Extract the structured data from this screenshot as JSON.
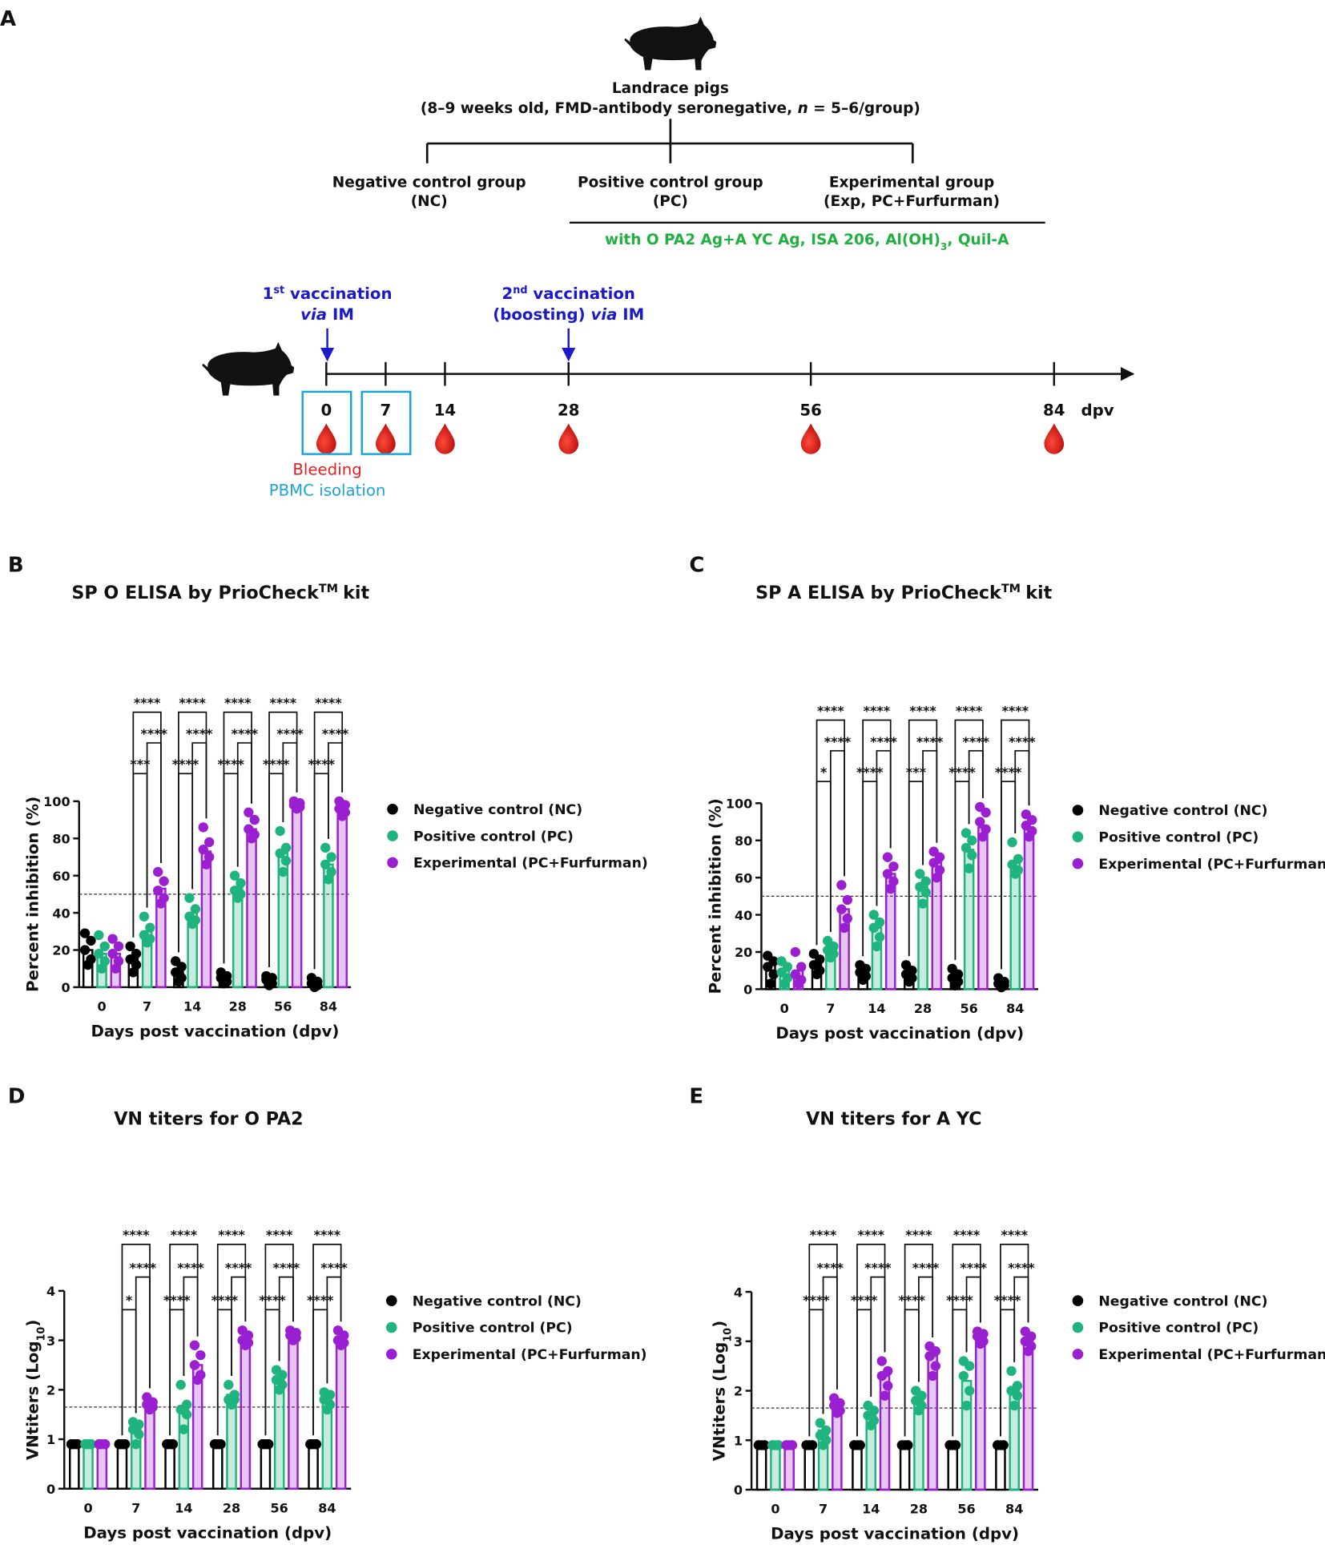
{
  "diagram": {
    "panel": "A",
    "title": "Landrace pigs",
    "subtitle": "(8–9 weeks old, FMD-antibody seronegative, ",
    "subtitle_em": "n",
    "subtitle_end": " = 5–6/group)",
    "groups": [
      {
        "name": "Negative control group",
        "abbr": "(NC)"
      },
      {
        "name": "Positive control group",
        "abbr": "(PC)"
      },
      {
        "name": "Experimental group",
        "abbr": "(Exp, PC+Furfurman)"
      }
    ],
    "adjuvant": "with O PA2 Ag+A YC Ag, ISA 206, Al(OH)",
    "adjuvant_sub": "3",
    "adjuvant_end": ", Quil-A",
    "vaccinations": [
      {
        "ord": "1",
        "sup": "st",
        "text": " vaccination",
        "pre": "",
        "em": "via",
        "end": " IM"
      },
      {
        "ord": "2",
        "sup": "nd",
        "text": " vaccination",
        "pre": "(boosting) ",
        "em": "via",
        "end": " IM"
      }
    ],
    "days": [
      0,
      7,
      14,
      28,
      56,
      84
    ],
    "unit": "dpv",
    "bleeding": "Bleeding",
    "pbmc": "PBMC isolation"
  },
  "chart_data": [
    {
      "type": "bar",
      "panel": "B",
      "title": "SP O ELISA by PrioCheck",
      "title_sup": "TM",
      "title_end": "kit",
      "y_label": "Percent inhibition (%)",
      "x_label": "Days post vaccination (dpv)",
      "categories": [
        "0",
        "7",
        "14",
        "28",
        "56",
        "84"
      ],
      "ylim": [
        0,
        100
      ],
      "yticks": [
        0,
        20,
        40,
        60,
        80,
        100
      ],
      "threshold": 50,
      "series": [
        {
          "name": "Negative control (NC)",
          "color": "#000000",
          "values": [
            20,
            15,
            8,
            5,
            4,
            3
          ],
          "points": [
            [
              29,
              25,
              20,
              15,
              12
            ],
            [
              22,
              18,
              15,
              12,
              8
            ],
            [
              14,
              11,
              8,
              5,
              3
            ],
            [
              8,
              6,
              5,
              3,
              2
            ],
            [
              6,
              5,
              4,
              2,
              1
            ],
            [
              5,
              3,
              2,
              1,
              0
            ]
          ]
        },
        {
          "name": "Positive control (PC)",
          "color": "#1fb47e",
          "values": [
            18,
            30,
            40,
            53,
            72,
            66
          ],
          "points": [
            [
              28,
              22,
              18,
              14,
              10
            ],
            [
              38,
              32,
              28,
              26,
              24
            ],
            [
              48,
              42,
              38,
              36,
              34
            ],
            [
              60,
              56,
              52,
              50,
              48
            ],
            [
              84,
              75,
              72,
              68,
              62
            ],
            [
              75,
              70,
              66,
              62,
              58
            ]
          ]
        },
        {
          "name": "Experimental (PC+Furfurman)",
          "color": "#9a1fd0",
          "values": [
            18,
            53,
            73,
            85,
            98,
            96
          ],
          "points": [
            [
              26,
              22,
              18,
              14,
              10
            ],
            [
              62,
              57,
              52,
              48,
              45
            ],
            [
              86,
              78,
              74,
              70,
              66
            ],
            [
              94,
              90,
              85,
              82,
              80
            ],
            [
              100,
              99,
              98,
              97,
              96
            ],
            [
              100,
              98,
              96,
              94,
              92
            ]
          ]
        }
      ],
      "significance": [
        [],
        [
          "***",
          "****",
          "****"
        ],
        [
          "****",
          "****",
          "****"
        ],
        [
          "****",
          "****",
          "****"
        ],
        [
          "****",
          "****",
          "****"
        ],
        [
          "****",
          "****",
          "****"
        ]
      ]
    },
    {
      "type": "bar",
      "panel": "C",
      "title": "SP A ELISA by PrioCheck",
      "title_sup": "TM",
      "title_end": "kit",
      "y_label": "Percent inhibition (%)",
      "x_label": "Days post vaccination (dpv)",
      "categories": [
        "0",
        "7",
        "14",
        "28",
        "56",
        "84"
      ],
      "ylim": [
        0,
        100
      ],
      "yticks": [
        0,
        20,
        40,
        60,
        80,
        100
      ],
      "threshold": 50,
      "series": [
        {
          "name": "Negative control (NC)",
          "color": "#000000",
          "values": [
            13,
            13,
            9,
            8,
            6,
            3
          ],
          "points": [
            [
              18,
              15,
              12,
              8,
              3
            ],
            [
              19,
              16,
              13,
              10,
              8
            ],
            [
              13,
              11,
              9,
              7,
              5
            ],
            [
              13,
              10,
              8,
              6,
              4
            ],
            [
              11,
              8,
              6,
              4,
              2
            ],
            [
              6,
              4,
              3,
              2,
              1
            ]
          ]
        },
        {
          "name": "Positive control (PC)",
          "color": "#1fb47e",
          "values": [
            10,
            22,
            33,
            55,
            75,
            68
          ],
          "points": [
            [
              15,
              12,
              9,
              6,
              3
            ],
            [
              26,
              23,
              21,
              19,
              17
            ],
            [
              40,
              36,
              33,
              28,
              23
            ],
            [
              62,
              58,
              55,
              52,
              46
            ],
            [
              84,
              80,
              76,
              72,
              65
            ],
            [
              79,
              70,
              67,
              64,
              62
            ]
          ]
        },
        {
          "name": "Experimental (PC+Furfurman)",
          "color": "#9a1fd0",
          "values": [
            10,
            43,
            62,
            68,
            87,
            87
          ],
          "points": [
            [
              20,
              12,
              8,
              5,
              3
            ],
            [
              56,
              48,
              43,
              38,
              33
            ],
            [
              71,
              66,
              62,
              58,
              54
            ],
            [
              74,
              71,
              68,
              64,
              60
            ],
            [
              98,
              95,
              90,
              86,
              82
            ],
            [
              94,
              91,
              88,
              85,
              82
            ]
          ]
        }
      ],
      "significance": [
        [],
        [
          "*",
          "****",
          "****"
        ],
        [
          "****",
          "****",
          "****"
        ],
        [
          "***",
          "****",
          "****"
        ],
        [
          "****",
          "****",
          "****"
        ],
        [
          "****",
          "****",
          "****"
        ]
      ]
    },
    {
      "type": "bar",
      "panel": "D",
      "title": "VN titers for O PA2",
      "y_label": "VNtiters (Log",
      "y_label_sub": "10",
      "y_label_end": ")",
      "x_label": "Days post vaccination (dpv)",
      "categories": [
        "0",
        "7",
        "14",
        "28",
        "56",
        "84"
      ],
      "ylim": [
        0,
        4
      ],
      "yticks": [
        0,
        1,
        2,
        3,
        4
      ],
      "threshold": 1.65,
      "series": [
        {
          "name": "Negative control (NC)",
          "color": "#000000",
          "values": [
            0.9,
            0.9,
            0.9,
            0.9,
            0.9,
            0.9
          ],
          "points": [
            [
              0.9,
              0.9,
              0.9,
              0.9,
              0.9
            ],
            [
              0.9,
              0.9,
              0.9,
              0.9,
              0.9
            ],
            [
              0.9,
              0.9,
              0.9,
              0.9,
              0.9
            ],
            [
              0.9,
              0.9,
              0.9,
              0.9,
              0.9
            ],
            [
              0.9,
              0.9,
              0.9,
              0.9,
              0.9
            ],
            [
              0.9,
              0.9,
              0.9,
              0.9,
              0.9
            ]
          ]
        },
        {
          "name": "Positive control (PC)",
          "color": "#1fb47e",
          "values": [
            0.9,
            1.2,
            1.6,
            1.9,
            2.2,
            1.8
          ],
          "points": [
            [
              0.9,
              0.9,
              0.9,
              0.9,
              0.9
            ],
            [
              1.35,
              1.3,
              1.2,
              1.1,
              0.9
            ],
            [
              2.1,
              1.7,
              1.6,
              1.5,
              1.2
            ],
            [
              2.1,
              1.9,
              1.8,
              1.8,
              1.7
            ],
            [
              2.4,
              2.3,
              2.2,
              2.1,
              2.0
            ],
            [
              1.95,
              1.9,
              1.8,
              1.7,
              1.6
            ]
          ]
        },
        {
          "name": "Experimental (PC+Furfurman)",
          "color": "#9a1fd0",
          "values": [
            0.9,
            1.7,
            2.5,
            3.0,
            3.1,
            3.0
          ],
          "points": [
            [
              0.9,
              0.9,
              0.9,
              0.9,
              0.9
            ],
            [
              1.85,
              1.75,
              1.7,
              1.65,
              1.6
            ],
            [
              2.9,
              2.7,
              2.5,
              2.3,
              2.2
            ],
            [
              3.2,
              3.1,
              3.0,
              2.95,
              2.9
            ],
            [
              3.2,
              3.15,
              3.1,
              3.05,
              3.0
            ],
            [
              3.2,
              3.1,
              3.0,
              2.95,
              2.9
            ]
          ]
        }
      ],
      "significance": [
        [],
        [
          "*",
          "****",
          "****"
        ],
        [
          "****",
          "****",
          "****"
        ],
        [
          "****",
          "****",
          "****"
        ],
        [
          "****",
          "****",
          "****"
        ],
        [
          "****",
          "****",
          "****"
        ]
      ]
    },
    {
      "type": "bar",
      "panel": "E",
      "title": "VN titers for A YC",
      "y_label": "VNtiters (Log",
      "y_label_sub": "10",
      "y_label_end": ")",
      "x_label": "Days post vaccination (dpv)",
      "categories": [
        "0",
        "7",
        "14",
        "28",
        "56",
        "84"
      ],
      "ylim": [
        0,
        4
      ],
      "yticks": [
        0,
        1,
        2,
        3,
        4
      ],
      "threshold": 1.65,
      "series": [
        {
          "name": "Negative control (NC)",
          "color": "#000000",
          "values": [
            0.9,
            0.9,
            0.9,
            0.9,
            0.9,
            0.9
          ],
          "points": [
            [
              0.9,
              0.9,
              0.9,
              0.9,
              0.9
            ],
            [
              0.9,
              0.9,
              0.9,
              0.9,
              0.9
            ],
            [
              0.9,
              0.9,
              0.9,
              0.9,
              0.9
            ],
            [
              0.9,
              0.9,
              0.9,
              0.9,
              0.9
            ],
            [
              0.9,
              0.9,
              0.9,
              0.9,
              0.9
            ],
            [
              0.9,
              0.9,
              0.9,
              0.9,
              0.9
            ]
          ]
        },
        {
          "name": "Positive control (PC)",
          "color": "#1fb47e",
          "values": [
            0.9,
            1.2,
            1.5,
            1.8,
            2.2,
            2.0
          ],
          "points": [
            [
              0.9,
              0.9,
              0.9,
              0.9,
              0.9
            ],
            [
              1.35,
              1.2,
              1.1,
              1.0,
              0.9
            ],
            [
              1.7,
              1.6,
              1.5,
              1.4,
              1.3
            ],
            [
              2.0,
              1.9,
              1.8,
              1.7,
              1.6
            ],
            [
              2.6,
              2.5,
              2.3,
              2.0,
              1.7
            ],
            [
              2.4,
              2.1,
              2.0,
              1.9,
              1.7
            ]
          ]
        },
        {
          "name": "Experimental (PC+Furfurman)",
          "color": "#9a1fd0",
          "values": [
            0.9,
            1.7,
            2.3,
            2.7,
            3.1,
            3.0
          ],
          "points": [
            [
              0.9,
              0.9,
              0.9,
              0.9,
              0.9
            ],
            [
              1.85,
              1.75,
              1.7,
              1.6,
              1.55
            ],
            [
              2.6,
              2.4,
              2.3,
              2.1,
              1.9
            ],
            [
              2.9,
              2.8,
              2.7,
              2.5,
              2.3
            ],
            [
              3.2,
              3.15,
              3.1,
              3.0,
              2.95
            ],
            [
              3.2,
              3.1,
              3.0,
              2.9,
              2.8
            ]
          ]
        }
      ],
      "significance": [
        [],
        [
          "****",
          "****",
          "****"
        ],
        [
          "****",
          "****",
          "****"
        ],
        [
          "****",
          "****",
          "****"
        ],
        [
          "****",
          "****",
          "****"
        ],
        [
          "****",
          "****",
          "****"
        ]
      ]
    }
  ]
}
